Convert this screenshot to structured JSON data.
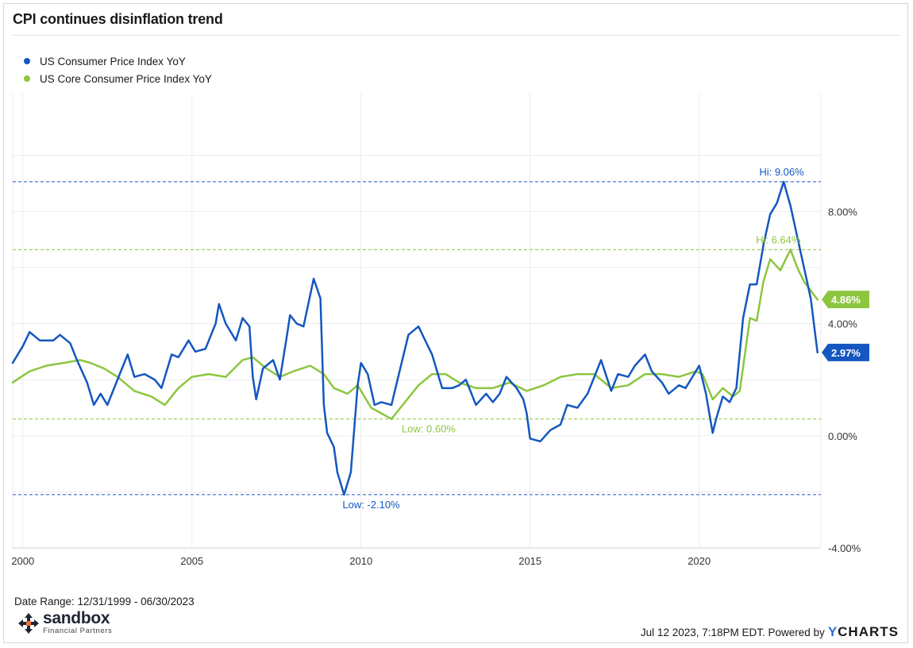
{
  "title": "CPI continues disinflation trend",
  "footer": {
    "date_range": "Date Range: 12/31/1999 - 06/30/2023",
    "timestamp": "Jul 12 2023, 7:18PM EDT. Powered by",
    "brand": "YCHARTS",
    "logo_name": "sandbox",
    "logo_sub": "Financial Partners"
  },
  "colors": {
    "cpi": "#1457c0",
    "core": "#8cc63f",
    "grid": "#ebebeb",
    "logo_accent": "#e9743a"
  },
  "chart_data": {
    "type": "line",
    "x_range": [
      1999.7,
      2023.6
    ],
    "ylim": [
      -4,
      12.2
    ],
    "x_ticks": [
      {
        "x": 2000,
        "label": "2000"
      },
      {
        "x": 2005,
        "label": "2005"
      },
      {
        "x": 2010,
        "label": "2010"
      },
      {
        "x": 2015,
        "label": "2015"
      },
      {
        "x": 2020,
        "label": "2020"
      }
    ],
    "y_ticks": [
      {
        "y": 8,
        "label": "8.00%"
      },
      {
        "y": 4,
        "label": "4.00%"
      },
      {
        "y": 0,
        "label": "0.00%"
      },
      {
        "y": -4,
        "label": "-4.00%"
      }
    ],
    "series": [
      {
        "name": "US Consumer Price Index YoY",
        "color": "#1457c0",
        "end_label": "2.97%",
        "points": [
          [
            1999.7,
            2.6
          ],
          [
            2000.0,
            3.2
          ],
          [
            2000.2,
            3.7
          ],
          [
            2000.5,
            3.4
          ],
          [
            2000.9,
            3.4
          ],
          [
            2001.1,
            3.6
          ],
          [
            2001.4,
            3.3
          ],
          [
            2001.6,
            2.7
          ],
          [
            2001.9,
            1.9
          ],
          [
            2002.1,
            1.1
          ],
          [
            2002.3,
            1.5
          ],
          [
            2002.5,
            1.1
          ],
          [
            2002.8,
            2.0
          ],
          [
            2003.1,
            2.9
          ],
          [
            2003.3,
            2.1
          ],
          [
            2003.6,
            2.2
          ],
          [
            2003.9,
            2.0
          ],
          [
            2004.1,
            1.7
          ],
          [
            2004.4,
            2.9
          ],
          [
            2004.6,
            2.8
          ],
          [
            2004.9,
            3.4
          ],
          [
            2005.1,
            3.0
          ],
          [
            2005.4,
            3.1
          ],
          [
            2005.7,
            4.0
          ],
          [
            2005.8,
            4.7
          ],
          [
            2006.0,
            4.0
          ],
          [
            2006.3,
            3.4
          ],
          [
            2006.5,
            4.2
          ],
          [
            2006.7,
            3.9
          ],
          [
            2006.8,
            2.1
          ],
          [
            2006.9,
            1.3
          ],
          [
            2007.1,
            2.4
          ],
          [
            2007.4,
            2.7
          ],
          [
            2007.6,
            2.0
          ],
          [
            2007.8,
            3.5
          ],
          [
            2007.9,
            4.3
          ],
          [
            2008.1,
            4.0
          ],
          [
            2008.3,
            3.9
          ],
          [
            2008.6,
            5.6
          ],
          [
            2008.8,
            4.9
          ],
          [
            2008.9,
            1.1
          ],
          [
            2009.0,
            0.1
          ],
          [
            2009.2,
            -0.4
          ],
          [
            2009.3,
            -1.3
          ],
          [
            2009.5,
            -2.1
          ],
          [
            2009.7,
            -1.3
          ],
          [
            2009.9,
            1.8
          ],
          [
            2010.0,
            2.6
          ],
          [
            2010.2,
            2.2
          ],
          [
            2010.4,
            1.1
          ],
          [
            2010.6,
            1.2
          ],
          [
            2010.9,
            1.1
          ],
          [
            2011.1,
            2.1
          ],
          [
            2011.4,
            3.6
          ],
          [
            2011.7,
            3.9
          ],
          [
            2011.9,
            3.4
          ],
          [
            2012.1,
            2.9
          ],
          [
            2012.4,
            1.7
          ],
          [
            2012.7,
            1.7
          ],
          [
            2012.9,
            1.8
          ],
          [
            2013.1,
            2.0
          ],
          [
            2013.4,
            1.1
          ],
          [
            2013.7,
            1.5
          ],
          [
            2013.9,
            1.2
          ],
          [
            2014.1,
            1.5
          ],
          [
            2014.3,
            2.1
          ],
          [
            2014.6,
            1.7
          ],
          [
            2014.8,
            1.3
          ],
          [
            2014.9,
            0.8
          ],
          [
            2015.0,
            -0.1
          ],
          [
            2015.3,
            -0.2
          ],
          [
            2015.6,
            0.2
          ],
          [
            2015.9,
            0.4
          ],
          [
            2016.1,
            1.1
          ],
          [
            2016.4,
            1.0
          ],
          [
            2016.7,
            1.5
          ],
          [
            2016.9,
            2.1
          ],
          [
            2017.1,
            2.7
          ],
          [
            2017.4,
            1.6
          ],
          [
            2017.6,
            2.2
          ],
          [
            2017.9,
            2.1
          ],
          [
            2018.1,
            2.5
          ],
          [
            2018.4,
            2.9
          ],
          [
            2018.6,
            2.3
          ],
          [
            2018.9,
            1.9
          ],
          [
            2019.1,
            1.5
          ],
          [
            2019.4,
            1.8
          ],
          [
            2019.6,
            1.7
          ],
          [
            2019.9,
            2.3
          ],
          [
            2020.0,
            2.5
          ],
          [
            2020.2,
            1.5
          ],
          [
            2020.4,
            0.1
          ],
          [
            2020.5,
            0.6
          ],
          [
            2020.7,
            1.4
          ],
          [
            2020.9,
            1.2
          ],
          [
            2021.1,
            1.7
          ],
          [
            2021.3,
            4.2
          ],
          [
            2021.5,
            5.4
          ],
          [
            2021.7,
            5.4
          ],
          [
            2021.9,
            6.8
          ],
          [
            2022.1,
            7.9
          ],
          [
            2022.3,
            8.3
          ],
          [
            2022.5,
            9.06
          ],
          [
            2022.7,
            8.2
          ],
          [
            2022.9,
            7.1
          ],
          [
            2023.1,
            6.0
          ],
          [
            2023.3,
            4.9
          ],
          [
            2023.5,
            2.97
          ]
        ]
      },
      {
        "name": "US Core Consumer Price Index YoY",
        "color": "#8cc63f",
        "end_label": "4.86%",
        "points": [
          [
            1999.7,
            1.9
          ],
          [
            2000.2,
            2.3
          ],
          [
            2000.7,
            2.5
          ],
          [
            2001.2,
            2.6
          ],
          [
            2001.7,
            2.7
          ],
          [
            2002.0,
            2.6
          ],
          [
            2002.4,
            2.4
          ],
          [
            2002.8,
            2.1
          ],
          [
            2003.3,
            1.6
          ],
          [
            2003.8,
            1.4
          ],
          [
            2004.2,
            1.1
          ],
          [
            2004.6,
            1.7
          ],
          [
            2005.0,
            2.1
          ],
          [
            2005.5,
            2.2
          ],
          [
            2006.0,
            2.1
          ],
          [
            2006.5,
            2.7
          ],
          [
            2006.8,
            2.8
          ],
          [
            2007.2,
            2.4
          ],
          [
            2007.6,
            2.1
          ],
          [
            2008.0,
            2.3
          ],
          [
            2008.5,
            2.5
          ],
          [
            2008.9,
            2.2
          ],
          [
            2009.2,
            1.7
          ],
          [
            2009.6,
            1.5
          ],
          [
            2009.9,
            1.8
          ],
          [
            2010.3,
            1.0
          ],
          [
            2010.6,
            0.8
          ],
          [
            2010.9,
            0.6
          ],
          [
            2011.3,
            1.2
          ],
          [
            2011.7,
            1.8
          ],
          [
            2012.1,
            2.2
          ],
          [
            2012.5,
            2.2
          ],
          [
            2012.9,
            1.9
          ],
          [
            2013.4,
            1.7
          ],
          [
            2013.9,
            1.7
          ],
          [
            2014.4,
            1.9
          ],
          [
            2014.9,
            1.6
          ],
          [
            2015.4,
            1.8
          ],
          [
            2015.9,
            2.1
          ],
          [
            2016.4,
            2.2
          ],
          [
            2016.9,
            2.2
          ],
          [
            2017.4,
            1.7
          ],
          [
            2017.9,
            1.8
          ],
          [
            2018.4,
            2.2
          ],
          [
            2018.9,
            2.2
          ],
          [
            2019.4,
            2.1
          ],
          [
            2019.9,
            2.3
          ],
          [
            2020.1,
            2.2
          ],
          [
            2020.4,
            1.3
          ],
          [
            2020.7,
            1.7
          ],
          [
            2021.0,
            1.4
          ],
          [
            2021.2,
            1.6
          ],
          [
            2021.5,
            4.2
          ],
          [
            2021.7,
            4.1
          ],
          [
            2021.9,
            5.5
          ],
          [
            2022.1,
            6.3
          ],
          [
            2022.4,
            5.9
          ],
          [
            2022.7,
            6.64
          ],
          [
            2022.9,
            6.0
          ],
          [
            2023.1,
            5.5
          ],
          [
            2023.5,
            4.86
          ]
        ]
      }
    ],
    "annotations": [
      {
        "label": "Hi: 9.06%",
        "y": 9.06,
        "series": "US Consumer Price Index YoY"
      },
      {
        "label": "Hi: 6.64%",
        "y": 6.64,
        "series": "US Core Consumer Price Index YoY"
      },
      {
        "label": "Low: 0.60%",
        "y": 0.6,
        "series": "US Core Consumer Price Index YoY"
      },
      {
        "label": "Low: -2.10%",
        "y": -2.1,
        "series": "US Consumer Price Index YoY"
      }
    ],
    "legend_position": "top-left",
    "grid": true
  }
}
